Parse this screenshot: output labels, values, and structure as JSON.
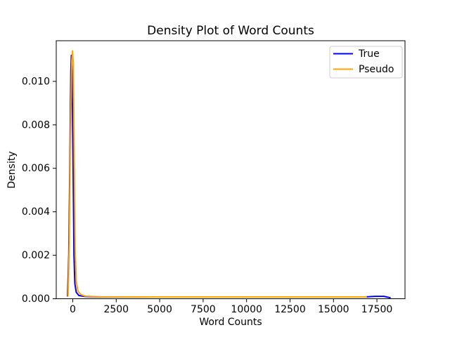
{
  "chart_data": {
    "type": "line",
    "title": "Density Plot of Word Counts",
    "xlabel": "Word Counts",
    "ylabel": "Density",
    "xlim": [
      -950,
      19115
    ],
    "ylim": [
      0,
      0.01187
    ],
    "xticks": [
      0,
      2500,
      5000,
      7500,
      10000,
      12500,
      15000,
      17500
    ],
    "xtick_labels": [
      "0",
      "2500",
      "5000",
      "7500",
      "10000",
      "12500",
      "15000",
      "17500"
    ],
    "yticks": [
      0.0,
      0.002,
      0.004,
      0.006,
      0.008,
      0.01
    ],
    "ytick_labels": [
      "0.000",
      "0.002",
      "0.004",
      "0.006",
      "0.008",
      "0.010"
    ],
    "grid": false,
    "background_color": "#ffffff",
    "spine_color": "#000000",
    "legend": {
      "position": "upper right",
      "border_color": "#cccccc",
      "entries": [
        {
          "label": "True",
          "color": "#0000ff"
        },
        {
          "label": "Pseudo",
          "color": "#ffa500"
        }
      ]
    },
    "series": [
      {
        "name": "True",
        "color": "#0000ff",
        "points": [
          [
            -300,
            0.0001
          ],
          [
            -230,
            0.002
          ],
          [
            -170,
            0.006
          ],
          [
            -110,
            0.0105
          ],
          [
            -80,
            0.0112
          ],
          [
            -40,
            0.0105
          ],
          [
            20,
            0.006
          ],
          [
            70,
            0.002
          ],
          [
            120,
            0.0007
          ],
          [
            200,
            0.0003
          ],
          [
            350,
            0.00015
          ],
          [
            700,
            0.0001
          ],
          [
            1500,
            8e-05
          ],
          [
            5000,
            8e-05
          ],
          [
            10000,
            8e-05
          ],
          [
            16000,
            8e-05
          ],
          [
            16800,
            8e-05
          ],
          [
            17400,
            0.00011
          ],
          [
            17900,
            0.00011
          ],
          [
            18290,
            4e-05
          ]
        ]
      },
      {
        "name": "Pseudo",
        "color": "#ffa500",
        "points": [
          [
            -270,
            0.0001
          ],
          [
            -200,
            0.0025
          ],
          [
            -140,
            0.007
          ],
          [
            -60,
            0.0109
          ],
          [
            -10,
            0.0114
          ],
          [
            30,
            0.0108
          ],
          [
            90,
            0.006
          ],
          [
            140,
            0.0022
          ],
          [
            200,
            0.0008
          ],
          [
            300,
            0.00035
          ],
          [
            450,
            0.0002
          ],
          [
            700,
            0.00012
          ],
          [
            1500,
            9e-05
          ],
          [
            5000,
            8e-05
          ],
          [
            10000,
            8e-05
          ],
          [
            16920,
            8e-05
          ]
        ]
      }
    ]
  }
}
